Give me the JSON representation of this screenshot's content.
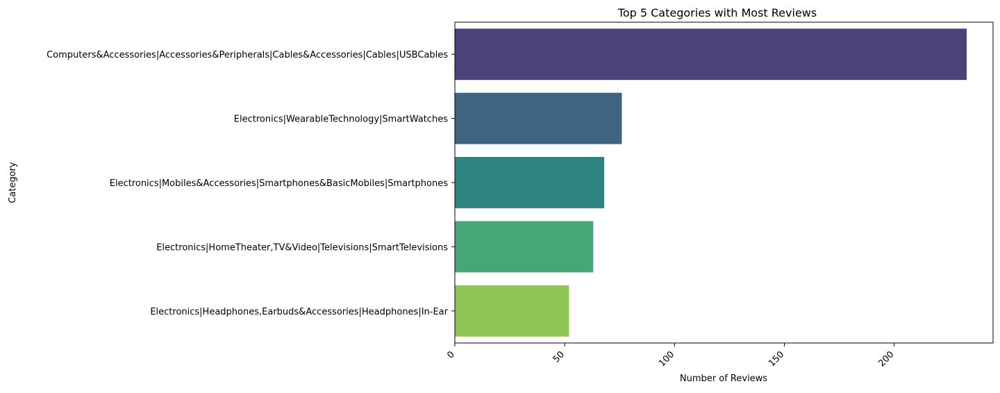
{
  "chart_data": {
    "type": "bar",
    "orientation": "horizontal",
    "title": "Top 5 Categories with Most Reviews",
    "xlabel": "Number of Reviews",
    "ylabel": "Category",
    "categories": [
      "Computers&Accessories|Accessories&Peripherals|Cables&Accessories|Cables|USBCables",
      "Electronics|WearableTechnology|SmartWatches",
      "Electronics|Mobiles&Accessories|Smartphones&BasicMobiles|Smartphones",
      "Electronics|HomeTheater,TV&Video|Televisions|SmartTelevisions",
      "Electronics|Headphones,Earbuds&Accessories|Headphones|In-Ear"
    ],
    "values": [
      233,
      76,
      68,
      63,
      52
    ],
    "colors": [
      "#4a4278",
      "#3e6480",
      "#2f8380",
      "#47a677",
      "#8ec556"
    ],
    "xlim": [
      0,
      245
    ],
    "xticks": [
      0,
      50,
      100,
      150,
      200
    ],
    "xtick_rotation": 45,
    "grid": false,
    "legend": "none"
  }
}
